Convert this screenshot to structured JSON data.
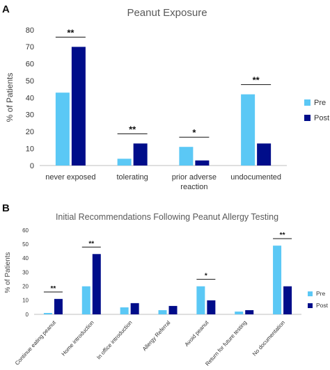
{
  "chart_data": [
    {
      "panel": "A",
      "type": "bar",
      "title": "Peanut Exposure",
      "ylabel": "% of Patients",
      "xlabel": "",
      "ylim": [
        0,
        80
      ],
      "yticks": [
        0,
        10,
        20,
        30,
        40,
        50,
        60,
        70,
        80
      ],
      "categories": [
        "never exposed",
        "tolerating",
        "prior adverse reaction",
        "undocumented"
      ],
      "category_lines": [
        [
          "never exposed"
        ],
        [
          "tolerating"
        ],
        [
          "prior adverse",
          "reaction"
        ],
        [
          "undocumented"
        ]
      ],
      "series": [
        {
          "name": "Pre",
          "color": "#5bc8f5",
          "values": [
            43,
            4,
            11,
            42
          ]
        },
        {
          "name": "Post",
          "color": "#000d8a",
          "values": [
            70,
            13,
            3,
            13
          ]
        }
      ],
      "significance": [
        "**",
        "**",
        "*",
        "**"
      ],
      "legend_position": "right",
      "grid": false
    },
    {
      "panel": "B",
      "type": "bar",
      "title": "Initial Recommendations Following Peanut Allergy Testing",
      "ylabel": "% of Patients",
      "xlabel": "",
      "ylim": [
        0,
        60
      ],
      "yticks": [
        0,
        10,
        20,
        30,
        40,
        50,
        60
      ],
      "categories": [
        "Continue eating peanut",
        "Home introduction",
        "In office introduction",
        "Allergy Referral",
        "Avoid peanut",
        "Return for future testing",
        "No documentation"
      ],
      "series": [
        {
          "name": "Pre",
          "color": "#5bc8f5",
          "values": [
            1,
            20,
            5,
            3,
            20,
            2,
            49
          ]
        },
        {
          "name": "Post",
          "color": "#000d8a",
          "values": [
            11,
            43,
            8,
            6,
            10,
            3,
            20
          ]
        }
      ],
      "significance": [
        "**",
        "**",
        "",
        "",
        "*",
        "",
        "**"
      ],
      "legend_position": "right",
      "grid": false
    }
  ]
}
